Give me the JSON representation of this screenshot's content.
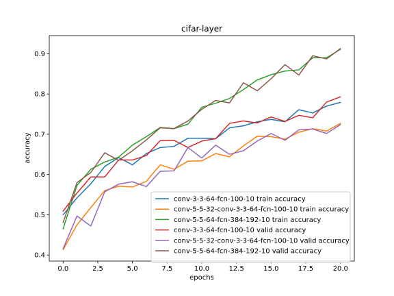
{
  "chart_data": {
    "type": "line",
    "title": "cifar-layer",
    "xlabel": "epochs",
    "ylabel": "accuracy",
    "xlim": [
      -1,
      21
    ],
    "ylim": [
      0.385,
      0.945
    ],
    "xticks": [
      0.0,
      2.5,
      5.0,
      7.5,
      10.0,
      12.5,
      15.0,
      17.5,
      20.0
    ],
    "xtick_labels": [
      "0.0",
      "2.5",
      "5.0",
      "7.5",
      "10.0",
      "12.5",
      "15.0",
      "17.5",
      "20.0"
    ],
    "yticks": [
      0.4,
      0.5,
      0.6,
      0.7,
      0.8,
      0.9
    ],
    "ytick_labels": [
      "0.4",
      "0.5",
      "0.6",
      "0.7",
      "0.8",
      "0.9"
    ],
    "grid": false,
    "legend_position": "lower-right",
    "x": [
      0,
      1,
      2,
      3,
      4,
      5,
      6,
      7,
      8,
      9,
      10,
      11,
      12,
      13,
      14,
      15,
      16,
      17,
      18,
      19,
      20
    ],
    "series": [
      {
        "name": "conv-3-3-64-fcn-100-10 train accuracy",
        "color": "#1f77b4",
        "values": [
          0.5,
          0.542,
          0.577,
          0.62,
          0.642,
          0.624,
          0.652,
          0.667,
          0.67,
          0.69,
          0.69,
          0.689,
          0.716,
          0.721,
          0.731,
          0.737,
          0.731,
          0.761,
          0.753,
          0.77,
          0.779
        ]
      },
      {
        "name": "conv-5-5-32-conv-3-3-64-fcn-100-10 train accuracy",
        "color": "#ff7f0e",
        "values": [
          0.413,
          0.475,
          0.518,
          0.56,
          0.571,
          0.569,
          0.583,
          0.624,
          0.613,
          0.633,
          0.634,
          0.652,
          0.644,
          0.671,
          0.695,
          0.694,
          0.688,
          0.705,
          0.714,
          0.708,
          0.727
        ]
      },
      {
        "name": "conv-5-5-64-fcn-384-192-10 train accuracy",
        "color": "#2ca02c",
        "values": [
          0.465,
          0.573,
          0.613,
          0.631,
          0.643,
          0.673,
          0.694,
          0.717,
          0.714,
          0.725,
          0.767,
          0.777,
          0.789,
          0.811,
          0.835,
          0.848,
          0.857,
          0.86,
          0.89,
          0.89,
          0.911
        ]
      },
      {
        "name": "conv-3-3-64-fcn-100-10 valid accuracy",
        "color": "#d62728",
        "values": [
          0.509,
          0.554,
          0.594,
          0.594,
          0.636,
          0.636,
          0.647,
          0.684,
          0.685,
          0.667,
          0.683,
          0.689,
          0.727,
          0.733,
          0.728,
          0.743,
          0.732,
          0.747,
          0.741,
          0.78,
          0.793
        ]
      },
      {
        "name": "conv-5-5-32-conv-3-3-64-fcn-100-10 valid accuracy",
        "color": "#9467bd",
        "values": [
          0.416,
          0.497,
          0.472,
          0.557,
          0.576,
          0.582,
          0.57,
          0.608,
          0.609,
          0.667,
          0.641,
          0.673,
          0.65,
          0.659,
          0.683,
          0.702,
          0.685,
          0.711,
          0.713,
          0.702,
          0.724
        ]
      },
      {
        "name": "conv-5-5-64-fcn-384-192-10 valid accuracy",
        "color": "#8c564b",
        "values": [
          0.481,
          0.58,
          0.605,
          0.654,
          0.635,
          0.659,
          0.686,
          0.716,
          0.714,
          0.733,
          0.762,
          0.784,
          0.778,
          0.828,
          0.808,
          0.838,
          0.873,
          0.847,
          0.895,
          0.887,
          0.913
        ]
      }
    ]
  }
}
